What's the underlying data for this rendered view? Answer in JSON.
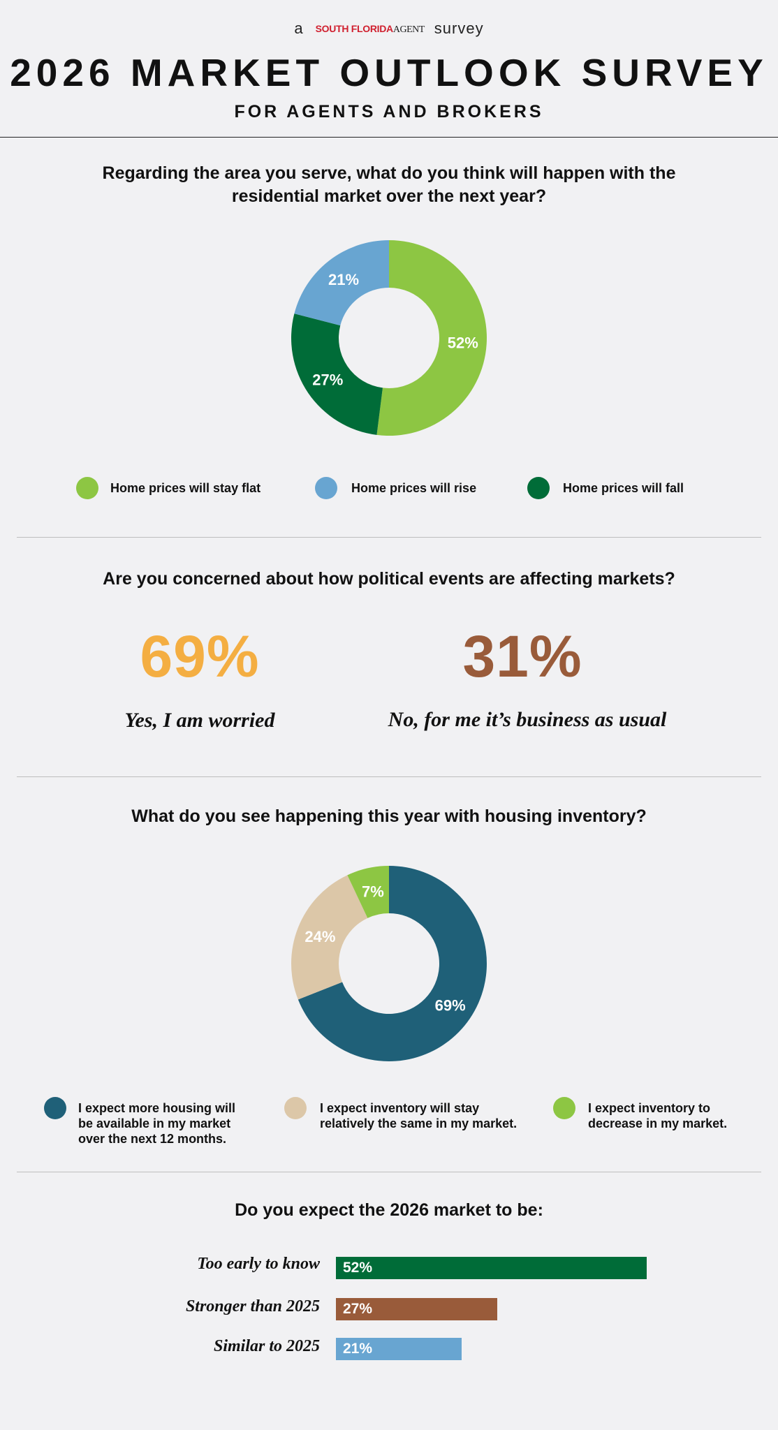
{
  "header": {
    "pre": "a",
    "logo_main": "SOUTH FLORIDA",
    "logo_sub": "AGENT",
    "post": "survey",
    "title": "2026 MARKET OUTLOOK SURVEY",
    "subtitle": "FOR AGENTS AND BROKERS"
  },
  "q1": {
    "question_line1": "Regarding the area you serve, what do you think will happen with the",
    "question_line2": "residential market over the next year?"
  },
  "q2": {
    "question": "Are you concerned about how political events are affecting markets?",
    "yes_pct": "69%",
    "yes_label": "Yes, I am worried",
    "no_pct": "31%",
    "no_label": "No, for me it’s business as usual",
    "yes_color": "#f4ae42",
    "no_color": "#995b3a"
  },
  "q3": {
    "question": "What do you see happening this year with housing inventory?",
    "legend": [
      {
        "line1": "I expect more housing will",
        "line2": "be available in my market",
        "line3": "over the next 12 months."
      },
      {
        "line1": "I expect inventory will stay",
        "line2": "relatively the same in my market.",
        "line3": ""
      },
      {
        "line1": "I expect inventory to",
        "line2": "decrease in my market.",
        "line3": ""
      }
    ]
  },
  "q4": {
    "question": "Do you expect the 2026 market to be:"
  },
  "chart_data": [
    {
      "type": "pie",
      "style": "donut",
      "categories": [
        "Home prices will stay flat",
        "Home prices will rise",
        "Home prices will fall"
      ],
      "values": [
        52,
        21,
        27
      ],
      "labels": [
        "52%",
        "21%",
        "27%"
      ],
      "colors": [
        "#8dc643",
        "#68a5d1",
        "#006c38"
      ],
      "order_clockwise": [
        "Home prices will stay flat",
        "Home prices will fall",
        "Home prices will rise"
      ],
      "legend_placement": "bottom"
    },
    {
      "type": "pie",
      "style": "donut",
      "categories": [
        "I expect more housing will be available in my market over the next 12 months.",
        "I expect inventory will stay relatively the same in my market.",
        "I expect inventory to decrease in my market."
      ],
      "values": [
        69,
        24,
        7
      ],
      "labels": [
        "69%",
        "24%",
        "7%"
      ],
      "colors": [
        "#1f6078",
        "#dcc7a8",
        "#8dc643"
      ],
      "legend_placement": "bottom"
    },
    {
      "type": "bar",
      "orientation": "horizontal",
      "categories": [
        "Too early to know",
        "Stronger than 2025",
        "Similar to 2025"
      ],
      "values": [
        52,
        27,
        21
      ],
      "labels": [
        "52%",
        "27%",
        "21%"
      ],
      "colors": [
        "#006c38",
        "#995b3a",
        "#68a5d1"
      ]
    }
  ]
}
